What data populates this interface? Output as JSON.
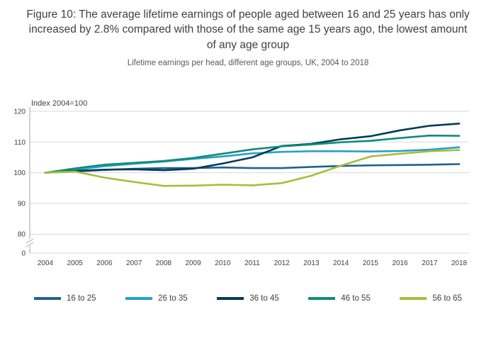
{
  "title": "Figure 10: The average lifetime earnings of people aged between 16 and 25 years has only increased by 2.8% compared with those of the same age 15 years ago, the lowest amount of any age group",
  "subtitle": "Lifetime earnings per head, different age groups, UK, 2004 to 2018",
  "chart_data": {
    "type": "line",
    "axis_note": "Index 2004=100",
    "x": [
      2004,
      2005,
      2006,
      2007,
      2008,
      2009,
      2010,
      2011,
      2012,
      2013,
      2014,
      2015,
      2016,
      2017,
      2018
    ],
    "yticks": [
      0,
      80,
      90,
      100,
      110,
      120
    ],
    "ylim_display": [
      80,
      120
    ],
    "axis_break": true,
    "grid": true,
    "legend_position": "bottom",
    "series": [
      {
        "name": "16 to 25",
        "color": "#206095",
        "values": [
          100,
          100.4,
          100.9,
          101.3,
          101.5,
          101.5,
          101.7,
          101.5,
          101.5,
          101.9,
          102.2,
          102.4,
          102.5,
          102.6,
          102.8
        ]
      },
      {
        "name": "26 to 35",
        "color": "#27A0CC",
        "values": [
          100,
          101.0,
          102.1,
          102.9,
          103.6,
          104.5,
          105.3,
          106.3,
          106.8,
          107.0,
          107.0,
          106.9,
          107.1,
          107.5,
          108.3
        ]
      },
      {
        "name": "36 to 45",
        "color": "#003C57",
        "values": [
          100,
          100.6,
          101.0,
          101.1,
          100.8,
          101.3,
          103.0,
          105.0,
          108.7,
          109.4,
          110.9,
          111.9,
          113.8,
          115.3,
          116.0
        ]
      },
      {
        "name": "46 to 55",
        "color": "#118C7B",
        "values": [
          100,
          101.4,
          102.6,
          103.2,
          103.8,
          104.8,
          106.2,
          107.6,
          108.6,
          109.2,
          109.9,
          110.4,
          111.3,
          112.1,
          112.0
        ]
      },
      {
        "name": "56 to 65",
        "color": "#A8BD3A",
        "values": [
          100,
          100.4,
          98.4,
          97.0,
          95.7,
          95.8,
          96.1,
          95.9,
          96.6,
          99.0,
          102.3,
          105.3,
          106.2,
          107.0,
          107.4
        ]
      }
    ]
  },
  "colors": {
    "grid": "#d9d9d9",
    "axis": "#a6a6a6",
    "tick_text": "#414042",
    "title_text": "#414042",
    "subtitle_text": "#58595B"
  }
}
